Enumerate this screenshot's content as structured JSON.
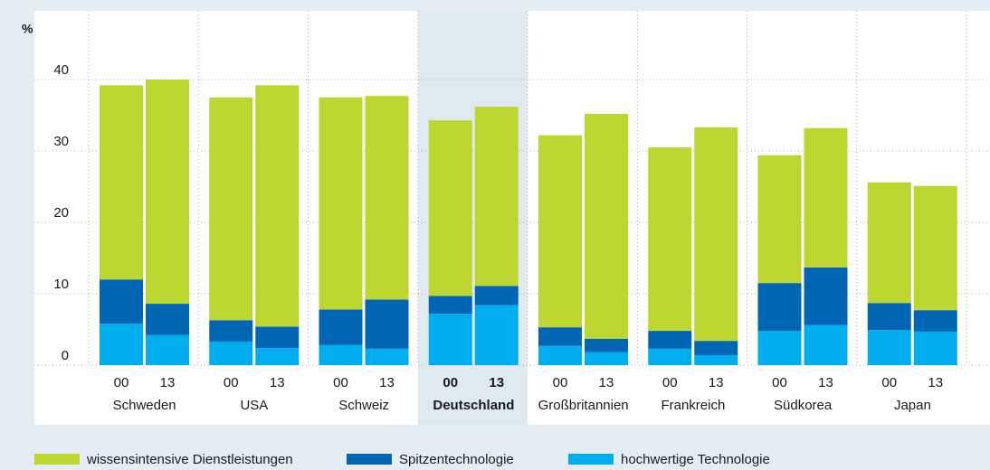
{
  "chart_data": {
    "type": "stacked-bar",
    "y_label": "%",
    "groups": [
      "Schweden",
      "USA",
      "Schweiz",
      "Deutschland",
      "Großbritannien",
      "Frankreich",
      "Südkorea",
      "Japan"
    ],
    "subcategories": [
      "00",
      "13"
    ],
    "highlight": "Deutschland",
    "series": [
      {
        "name": "hochwertige Technologie",
        "color": "#00aeef",
        "values": [
          5.8,
          4.2,
          3.3,
          2.4,
          2.8,
          2.3,
          7.2,
          8.4,
          2.7,
          1.8,
          2.3,
          1.4,
          4.8,
          5.6,
          4.9,
          4.7
        ]
      },
      {
        "name": "Spitzentechnologie",
        "color": "#0066b3",
        "values": [
          6.2,
          4.4,
          3.0,
          3.0,
          5.0,
          6.9,
          2.5,
          2.7,
          2.6,
          1.9,
          2.5,
          2.0,
          6.7,
          8.1,
          3.8,
          3.0
        ]
      },
      {
        "name": "wissensintensive Dienstleistungen",
        "color": "#bed630",
        "values": [
          27.2,
          31.4,
          31.2,
          33.8,
          29.7,
          28.5,
          24.6,
          25.1,
          26.9,
          31.5,
          25.7,
          29.9,
          17.9,
          19.5,
          16.9,
          17.4
        ]
      }
    ],
    "legend_order": [
      2,
      1,
      0
    ],
    "ylim": [
      0,
      50
    ],
    "yticks": [
      0,
      10,
      20,
      30,
      40
    ],
    "grid": true
  }
}
